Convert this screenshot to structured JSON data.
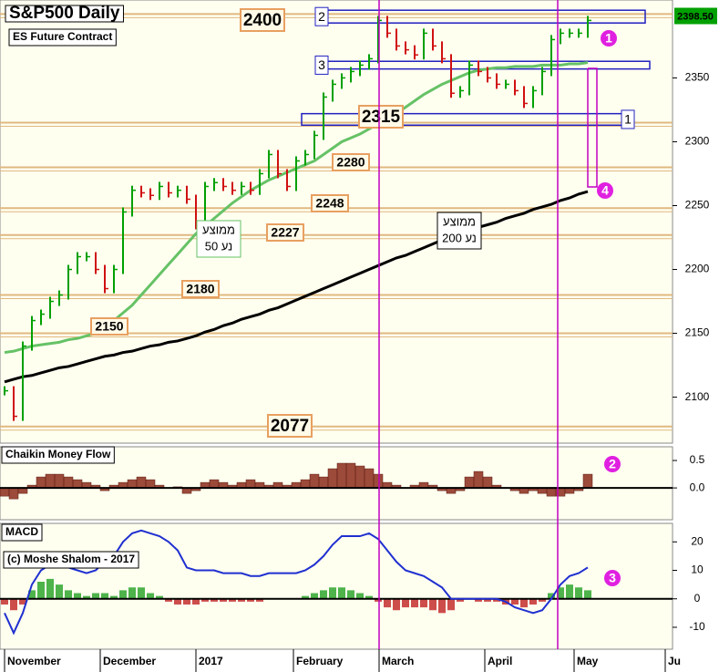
{
  "chart_data": [
    {
      "type": "ohlc",
      "title": "S&P500 Daily",
      "subtitle": "ES Future Contract",
      "ylim": [
        2064,
        2411
      ],
      "yticks": [
        2100,
        2150,
        2200,
        2250,
        2300,
        2350
      ],
      "last_price": {
        "value": 2398.5,
        "label": "2398.50"
      },
      "last_price_color": "#00a000",
      "up_color": "#00a000",
      "down_color": "#d01010",
      "series": [
        {
          "name": "S&P500",
          "values": [
            2105,
            2085,
            2140,
            2160,
            2165,
            2175,
            2180,
            2200,
            2210,
            2210,
            2200,
            2185,
            2200,
            2245,
            2262,
            2260,
            2258,
            2265,
            2260,
            2262,
            2255,
            2235,
            2265,
            2268,
            2265,
            2262,
            2265,
            2262,
            2275,
            2290,
            2275,
            2265,
            2285,
            2290,
            2305,
            2335,
            2345,
            2350,
            2355,
            2360,
            2365,
            2395,
            2385,
            2375,
            2372,
            2368,
            2385,
            2375,
            2365,
            2338,
            2340,
            2360,
            2355,
            2350,
            2345,
            2345,
            2340,
            2330,
            2340,
            2355,
            2380,
            2385,
            2385,
            2385,
            2395
          ]
        },
        {
          "name": "MA50",
          "label_lines": [
            "ממוצע",
            "נע 50"
          ],
          "color": "#66c266",
          "values": [
            2135,
            2136,
            2138,
            2140,
            2141,
            2142,
            2143,
            2145,
            2146,
            2148,
            2150,
            2155,
            2160,
            2166,
            2172,
            2180,
            2188,
            2196,
            2204,
            2212,
            2220,
            2228,
            2234,
            2240,
            2246,
            2252,
            2257,
            2262,
            2266,
            2270,
            2273,
            2276,
            2279,
            2282,
            2285,
            2290,
            2295,
            2300,
            2303,
            2306,
            2310,
            2314,
            2318,
            2322,
            2327,
            2332,
            2337,
            2341,
            2345,
            2348,
            2351,
            2354,
            2356,
            2357,
            2358,
            2358,
            2359,
            2359,
            2359,
            2360,
            2360,
            2360,
            2361,
            2361,
            2362
          ]
        },
        {
          "name": "MA200",
          "label_lines": [
            "ממוצע",
            "נע 200"
          ],
          "color": "#000000",
          "values": [
            2112,
            2114,
            2116,
            2117,
            2119,
            2121,
            2123,
            2124,
            2126,
            2128,
            2130,
            2132,
            2133,
            2135,
            2136,
            2138,
            2140,
            2141,
            2143,
            2144,
            2146,
            2148,
            2151,
            2153,
            2156,
            2158,
            2161,
            2163,
            2165,
            2168,
            2170,
            2173,
            2176,
            2179,
            2182,
            2185,
            2188,
            2191,
            2194,
            2197,
            2200,
            2203,
            2206,
            2209,
            2211,
            2214,
            2217,
            2220,
            2223,
            2225,
            2228,
            2230,
            2233,
            2235,
            2237,
            2240,
            2242,
            2244,
            2247,
            2249,
            2251,
            2254,
            2256,
            2259,
            2261
          ]
        }
      ],
      "levels": [
        2400,
        2315,
        2280,
        2248,
        2227,
        2180,
        2150,
        2077
      ],
      "level_color": "#e0b880",
      "zones": [
        {
          "label": "2",
          "low": 2393,
          "high": 2403
        },
        {
          "label": "3",
          "low": 2357,
          "high": 2363
        },
        {
          "label": "1",
          "low": 2313,
          "high": 2322
        }
      ],
      "zone_color": "#2020c0",
      "markers": [
        "1",
        "4"
      ],
      "marker_color": "#e020e0"
    },
    {
      "type": "histogram",
      "title": "Chaikin Money Flow",
      "color": "#8b2a1a",
      "ylim": [
        -0.58,
        0.75
      ],
      "yticks": [
        0.5,
        {
          "value": 0,
          "label": "0.0"
        }
      ],
      "values": [
        -0.15,
        -0.2,
        -0.1,
        0.05,
        0.2,
        0.25,
        0.25,
        0.2,
        0.15,
        0.1,
        0.05,
        -0.05,
        0.05,
        0.1,
        0.15,
        0.2,
        0.15,
        0.05,
        0,
        0.02,
        -0.1,
        -0.05,
        0.1,
        0.15,
        0.1,
        0.05,
        0.1,
        0.15,
        0.1,
        0.05,
        0.1,
        0.05,
        0.1,
        0.15,
        0.25,
        0.2,
        0.35,
        0.45,
        0.45,
        0.4,
        0.35,
        0.25,
        0.1,
        0.05,
        0,
        0.05,
        0.1,
        0.05,
        -0.05,
        -0.1,
        -0.05,
        0.2,
        0.3,
        0.2,
        0.05,
        0,
        -0.05,
        -0.1,
        -0.05,
        -0.1,
        -0.15,
        -0.15,
        -0.1,
        -0.05,
        0.25
      ],
      "markers": [
        "2"
      ]
    },
    {
      "type": "macd",
      "title": "MACD",
      "subtitle": "(c) Moshe Shalom - 2017",
      "ylim": [
        -17.7,
        26.5
      ],
      "yticks": [
        -10,
        0,
        10,
        20
      ],
      "x_labels": [
        "November",
        "December",
        "2017",
        "February",
        "March",
        "April",
        "May",
        "Ju"
      ],
      "series": [
        {
          "name": "MACD",
          "color": "#2030d0",
          "values": [
            -5,
            -12,
            -5,
            5,
            10,
            12,
            12,
            11,
            10,
            9,
            10,
            13,
            15,
            20,
            23,
            24,
            23,
            22,
            20,
            17,
            11,
            10,
            10,
            10,
            9,
            9,
            9,
            8,
            8,
            9,
            9,
            9,
            9,
            10,
            12,
            15,
            19,
            22,
            22,
            22,
            23,
            21,
            17,
            13,
            10,
            9,
            8,
            6,
            4,
            0,
            0,
            0,
            0,
            0,
            0,
            -1,
            -3,
            -4,
            -5,
            -4,
            0,
            5,
            8,
            9,
            11
          ]
        },
        {
          "name": "Histogram",
          "up_color": "#20a020",
          "down_color": "#c02020",
          "values": [
            -2,
            -4,
            -2,
            3,
            6,
            7,
            5,
            3,
            2,
            1,
            2,
            2,
            1,
            3,
            4,
            4,
            2,
            1,
            -1,
            -2,
            -2,
            -2,
            -1,
            -1,
            -1,
            -1,
            -1,
            -1,
            -1,
            0,
            0,
            0,
            0,
            1,
            2,
            3,
            4,
            4,
            3,
            2,
            1,
            -1,
            -3,
            -4,
            -3,
            -3,
            -3,
            -4,
            -5,
            -4,
            -1,
            0,
            -1,
            -1,
            -1,
            -2,
            -2,
            -3,
            -2,
            -1,
            2,
            4,
            5,
            4,
            3
          ]
        }
      ],
      "markers": [
        "3"
      ]
    }
  ]
}
